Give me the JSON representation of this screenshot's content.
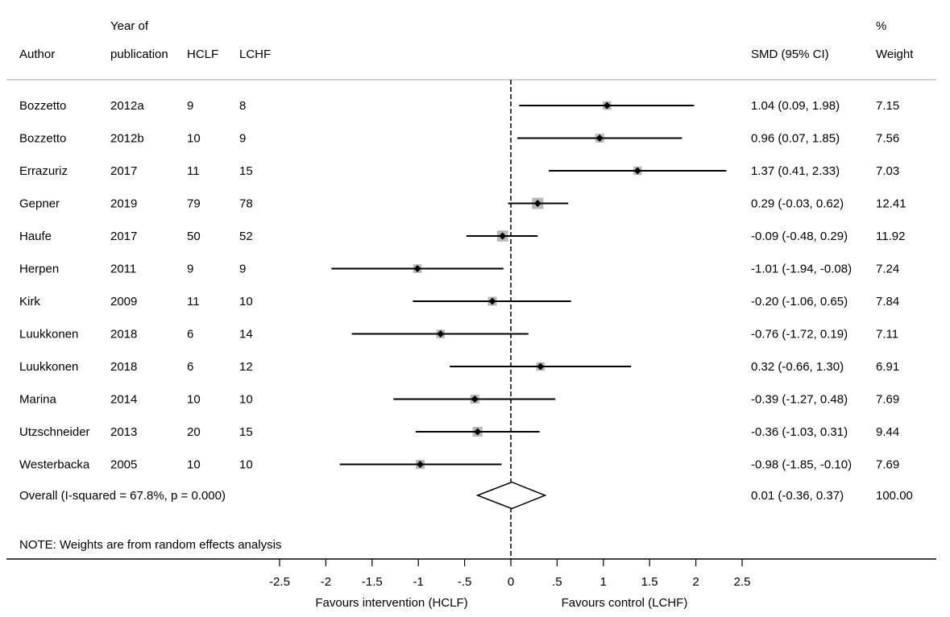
{
  "header": {
    "author": "Author",
    "year_line1": "Year of",
    "year_line2": "publication",
    "hclf": "HCLF",
    "lchf": "LCHF",
    "smd": "SMD (95% CI)",
    "weight_line1": "%",
    "weight_line2": "Weight"
  },
  "chart_data": {
    "type": "forest",
    "effect_measure": "SMD",
    "studies": [
      {
        "author": "Bozzetto",
        "year": "2012a",
        "hclf": "9",
        "lchf": "8",
        "smd": 1.04,
        "lo": 0.09,
        "hi": 1.98,
        "ci_label": "1.04 (0.09, 1.98)",
        "weight": "7.15"
      },
      {
        "author": "Bozzetto",
        "year": "2012b",
        "hclf": "10",
        "lchf": "9",
        "smd": 0.96,
        "lo": 0.07,
        "hi": 1.85,
        "ci_label": "0.96 (0.07, 1.85)",
        "weight": "7.56"
      },
      {
        "author": "Errazuriz",
        "year": "2017",
        "hclf": "11",
        "lchf": "15",
        "smd": 1.37,
        "lo": 0.41,
        "hi": 2.33,
        "ci_label": "1.37 (0.41, 2.33)",
        "weight": "7.03"
      },
      {
        "author": "Gepner",
        "year": "2019",
        "hclf": "79",
        "lchf": "78",
        "smd": 0.29,
        "lo": -0.03,
        "hi": 0.62,
        "ci_label": "0.29 (-0.03, 0.62)",
        "weight": "12.41"
      },
      {
        "author": "Haufe",
        "year": "2017",
        "hclf": "50",
        "lchf": "52",
        "smd": -0.09,
        "lo": -0.48,
        "hi": 0.29,
        "ci_label": "-0.09 (-0.48, 0.29)",
        "weight": "11.92"
      },
      {
        "author": "Herpen",
        "year": "2011",
        "hclf": "9",
        "lchf": "9",
        "smd": -1.01,
        "lo": -1.94,
        "hi": -0.08,
        "ci_label": "-1.01 (-1.94, -0.08)",
        "weight": "7.24"
      },
      {
        "author": "Kirk",
        "year": "2009",
        "hclf": "11",
        "lchf": "10",
        "smd": -0.2,
        "lo": -1.06,
        "hi": 0.65,
        "ci_label": "-0.20 (-1.06, 0.65)",
        "weight": "7.84"
      },
      {
        "author": "Luukkonen",
        "year": "2018",
        "hclf": "6",
        "lchf": "14",
        "smd": -0.76,
        "lo": -1.72,
        "hi": 0.19,
        "ci_label": "-0.76 (-1.72, 0.19)",
        "weight": "7.11"
      },
      {
        "author": "Luukkonen",
        "year": "2018",
        "hclf": "6",
        "lchf": "12",
        "smd": 0.32,
        "lo": -0.66,
        "hi": 1.3,
        "ci_label": "0.32 (-0.66, 1.30)",
        "weight": "6.91"
      },
      {
        "author": "Marina",
        "year": "2014",
        "hclf": "10",
        "lchf": "10",
        "smd": -0.39,
        "lo": -1.27,
        "hi": 0.48,
        "ci_label": "-0.39 (-1.27, 0.48)",
        "weight": "7.69"
      },
      {
        "author": "Utzschneider",
        "year": "2013",
        "hclf": "20",
        "lchf": "15",
        "smd": -0.36,
        "lo": -1.03,
        "hi": 0.31,
        "ci_label": "-0.36 (-1.03, 0.31)",
        "weight": "9.44"
      },
      {
        "author": "Westerbacka",
        "year": "2005",
        "hclf": "10",
        "lchf": "10",
        "smd": -0.98,
        "lo": -1.85,
        "hi": -0.1,
        "ci_label": "-0.98 (-1.85, -0.10)",
        "weight": "7.69"
      }
    ],
    "overall": {
      "label": "Overall  (I-squared = 67.8%, p = 0.000)",
      "smd": 0.01,
      "lo": -0.36,
      "hi": 0.37,
      "ci_label": "0.01 (-0.36, 0.37)",
      "weight": "100.00"
    },
    "note": "NOTE: Weights are from random effects analysis",
    "x_ticks": [
      -2.5,
      -2,
      -1.5,
      -1,
      -0.5,
      0,
      0.5,
      1,
      1.5,
      2,
      2.5
    ],
    "x_tick_labels": [
      "-2.5",
      "-2",
      "-1.5",
      "-1",
      "-.5",
      "0",
      ".5",
      "1",
      "1.5",
      "2",
      "2.5"
    ],
    "xlim": [
      -2.5,
      2.5
    ],
    "null_value": 0,
    "xlabel_left": "Favours intervention (HCLF)",
    "xlabel_right": "Favours control (LCHF)"
  }
}
